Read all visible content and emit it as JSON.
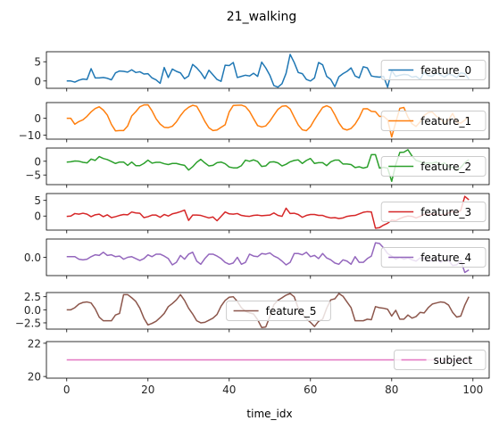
{
  "chart_data": {
    "type": "line",
    "title": "21_walking",
    "xlabel": "time_idx",
    "xlim": [
      -5,
      104
    ],
    "xticks": [
      0,
      20,
      40,
      60,
      80,
      100
    ],
    "x": [
      0,
      1,
      2,
      3,
      4,
      5,
      6,
      7,
      8,
      9,
      10,
      11,
      12,
      13,
      14,
      15,
      16,
      17,
      18,
      19,
      20,
      21,
      22,
      23,
      24,
      25,
      26,
      27,
      28,
      29,
      30,
      31,
      32,
      33,
      34,
      35,
      36,
      37,
      38,
      39,
      40,
      41,
      42,
      43,
      44,
      45,
      46,
      47,
      48,
      49,
      50,
      51,
      52,
      53,
      54,
      55,
      56,
      57,
      58,
      59,
      60,
      61,
      62,
      63,
      64,
      65,
      66,
      67,
      68,
      69,
      70,
      71,
      72,
      73,
      74,
      75,
      76,
      77,
      78,
      79,
      80,
      81,
      82,
      83,
      84,
      85,
      86,
      87,
      88,
      89,
      90,
      91,
      92,
      93,
      94,
      95,
      96,
      97,
      98,
      99
    ],
    "panels": [
      {
        "series": {
          "name": "feature_0",
          "color": "#1f77b4",
          "values": [
            0,
            0,
            -0.3,
            0.2,
            0.5,
            0.4,
            3.2,
            0.8,
            0.8,
            0.9,
            0.7,
            0.3,
            2.1,
            2.6,
            2.5,
            2.3,
            2.9,
            2.2,
            2.4,
            1.8,
            1.9,
            0.8,
            0.3,
            -0.6,
            3.5,
            0.9,
            3.1,
            2.5,
            2.1,
            0.6,
            1.3,
            4.3,
            3.4,
            2.2,
            0.6,
            2.8,
            1.6,
            0.4,
            -0.1,
            4.1,
            4.0,
            4.8,
            0.9,
            1.2,
            1.5,
            1.3,
            2.0,
            1.2,
            4.9,
            3.4,
            1.5,
            -1.2,
            -1.6,
            -0.7,
            2.0,
            6.9,
            4.8,
            2.2,
            1.9,
            0.4,
            0.0,
            0.8,
            4.8,
            4.2,
            1.2,
            0.4,
            -1.5,
            1.1,
            1.9,
            2.5,
            3.4,
            1.3,
            0.8,
            3.7,
            3.4,
            1.3,
            1.1,
            1.0,
            1.2,
            -1.6,
            2.7,
            1.2,
            1.5,
            1.7,
            1.6,
            1.0,
            1.2,
            0.4,
            2.3,
            1.4,
            1.2,
            2.1,
            1.6,
            1.0,
            1.8,
            1.5,
            0.9,
            2.1,
            1.9,
            0.5
          ]
        },
        "ylim": [
          -1.9,
          7.6
        ],
        "yticks": [
          0,
          5
        ],
        "ytick_labels": [
          "0",
          "5"
        ],
        "legend_loc": "right"
      },
      {
        "series": {
          "name": "feature_1",
          "color": "#ff7f0e",
          "values": [
            0,
            0,
            -3.5,
            -1.9,
            -0.9,
            1.2,
            3.8,
            5.8,
            6.8,
            4.9,
            1.9,
            -3.6,
            -7.4,
            -7.2,
            -7.2,
            -4.5,
            1.4,
            3.9,
            6.8,
            7.9,
            8.0,
            4.4,
            -0.3,
            -3.4,
            -5.3,
            -5.5,
            -4.7,
            -2.1,
            1.6,
            4.6,
            6.5,
            7.7,
            7.1,
            2.9,
            -1.8,
            -5.6,
            -7.2,
            -6.9,
            -5.3,
            -3.8,
            3.8,
            7.6,
            7.7,
            7.8,
            6.9,
            4.1,
            -0.2,
            -4.3,
            -5.1,
            -4.5,
            -1.7,
            1.9,
            5.3,
            7.1,
            7.4,
            5.5,
            0.7,
            -3.9,
            -6.8,
            -7.3,
            -4.9,
            -0.8,
            2.9,
            6.4,
            7.4,
            6.3,
            2.1,
            -2.7,
            -6.1,
            -6.9,
            -6.0,
            -3.4,
            0.5,
            5.6,
            5.7,
            4.1,
            3.9,
            1.1,
            1.2,
            -0.9,
            -11.0,
            -2.4,
            5.9,
            6.4,
            0.7,
            -3.2,
            -4.8,
            -2.1,
            1.7,
            3.4,
            3.7,
            1.2,
            -0.4,
            -2.7,
            -0.9,
            2.9,
            -2.2,
            -2.8,
            -1.1,
            0.8
          ]
        },
        "ylim": [
          -12.3,
          9.3
        ],
        "yticks": [
          -10,
          0
        ],
        "ytick_labels": [
          "−10",
          "0"
        ],
        "legend_loc": "right"
      },
      {
        "series": {
          "name": "feature_2",
          "color": "#2ca02c",
          "values": [
            -0.3,
            -0.2,
            0.1,
            0,
            -0.4,
            -0.6,
            0.8,
            0.3,
            1.7,
            1.0,
            0.6,
            -0.1,
            -0.8,
            -0.3,
            -0.3,
            -1.5,
            -0.3,
            -1.6,
            -1.6,
            -0.8,
            0.4,
            -0.7,
            -0.4,
            -0.4,
            -0.9,
            -1.2,
            -0.8,
            -0.8,
            -1.2,
            -1.5,
            -3.2,
            -2.0,
            -0.4,
            0.7,
            -0.6,
            -1.7,
            -1.5,
            -0.5,
            -0.3,
            -0.9,
            -2.1,
            -2.4,
            -2.4,
            -1.6,
            0.4,
            0,
            0.5,
            -0.1,
            -1.9,
            -1.7,
            -0.3,
            -0.2,
            -0.6,
            -1.7,
            -1.1,
            -0.2,
            0.3,
            0.5,
            -0.8,
            0.3,
            1.0,
            -0.8,
            -0.5,
            -0.5,
            -1.6,
            -0.2,
            0.4,
            0.4,
            -1.0,
            -1.0,
            -1.2,
            -2.3,
            -2.0,
            -2.5,
            -2.1,
            2.4,
            2.4,
            -2.5,
            -2.2,
            -2.5,
            -7.3,
            -1.2,
            3.2,
            3.3,
            4.2,
            1.9,
            0.3,
            -0.1,
            -0.8,
            -0.6,
            -0.7,
            -0.3,
            -1.3,
            -0.6,
            -2.0,
            -2.2,
            -3.4,
            -2.3,
            -0.5,
            0.6
          ]
        },
        "ylim": [
          -8.5,
          4.8
        ],
        "yticks": [
          -5,
          0
        ],
        "ytick_labels": [
          "−5",
          "0"
        ],
        "legend_loc": "right"
      },
      {
        "series": {
          "name": "feature_3",
          "color": "#d62728",
          "values": [
            -0.1,
            0,
            0.8,
            0.6,
            0.9,
            0.6,
            -0.2,
            0.4,
            0.6,
            -0.2,
            0.4,
            -0.5,
            -0.2,
            0.2,
            0.5,
            0.4,
            1.3,
            1.0,
            0.9,
            -0.5,
            -0.2,
            0.3,
            0.3,
            -0.4,
            0.5,
            0,
            0.7,
            1.0,
            1.4,
            1.9,
            -1.4,
            0.3,
            0.3,
            0.2,
            -0.2,
            -0.6,
            -0.3,
            -1.5,
            -0.1,
            1.3,
            0.7,
            0.6,
            0.8,
            0.2,
            0,
            -0.1,
            0.2,
            0.3,
            0.1,
            0.2,
            0.3,
            1.0,
            0.2,
            -0.1,
            2.5,
            0.8,
            0.9,
            0.5,
            -0.4,
            0.2,
            0.5,
            0.5,
            0.2,
            0.2,
            -0.3,
            -0.6,
            -0.5,
            -0.8,
            -0.6,
            -0.1,
            0.1,
            0.2,
            0.7,
            1.2,
            1.4,
            1.3,
            -3.9,
            -3.7,
            -2.9,
            -2.3,
            -1.3,
            -1.5,
            -0.8,
            -0.3,
            0,
            -0.1,
            -0.6,
            -0.1,
            0.6,
            0.4,
            0.7,
            0.7,
            0.3,
            0.5,
            1.0,
            1.5,
            1.0,
            1.8,
            6.3,
            5.2
          ]
        },
        "ylim": [
          -4.5,
          7.2
        ],
        "yticks": [
          0,
          5
        ],
        "ytick_labels": [
          "0",
          "5"
        ],
        "legend_loc": "right"
      },
      {
        "series": {
          "name": "feature_4",
          "color": "#9467bd",
          "values": [
            0.1,
            0.1,
            0.1,
            -0.3,
            -0.4,
            -0.3,
            0.1,
            0.4,
            0.3,
            0.8,
            0.3,
            0.4,
            0.1,
            0.2,
            -0.3,
            0,
            0.1,
            -0.2,
            -0.5,
            -0.2,
            0.4,
            0.1,
            0.5,
            0.5,
            0.2,
            -0.2,
            -1.2,
            -0.8,
            0.3,
            -0.3,
            0.5,
            0.8,
            -0.6,
            -1.1,
            -0.2,
            0.5,
            0.5,
            0.2,
            -0.2,
            -0.8,
            -1.1,
            -0.9,
            0,
            -1.1,
            -0.8,
            0.5,
            0.2,
            0.1,
            0.6,
            0.5,
            0.7,
            0.2,
            -0.1,
            -0.6,
            -1.2,
            -0.8,
            0.6,
            0.6,
            0.4,
            0.8,
            0.1,
            0.3,
            -0.2,
            0.6,
            -0.1,
            -0.4,
            -0.9,
            -1.1,
            -0.4,
            -0.6,
            -1.1,
            0.1,
            -0.8,
            -0.8,
            -0.2,
            0.2,
            2.3,
            2.2,
            1.5,
            0.6,
            0.2,
            -0.3,
            0,
            -0.3,
            -0.1,
            -0.4,
            -0.6,
            -0.1,
            -0.2,
            -0.5,
            -0.6,
            -0.2,
            -0.8,
            -0.4,
            -0.5,
            -1.3,
            -1.2,
            -0.5,
            -2.4,
            -2.0
          ]
        },
        "ylim": [
          -2.9,
          2.9
        ],
        "yticks": [
          0.0
        ],
        "ytick_labels": [
          "0.0"
        ],
        "legend_loc": "right"
      },
      {
        "series": {
          "name": "feature_5",
          "color": "#8c564b",
          "values": [
            0,
            0,
            0.4,
            1.1,
            1.4,
            1.5,
            1.3,
            0.2,
            -1.4,
            -2.1,
            -2.1,
            -2.1,
            -1.0,
            -0.7,
            2.9,
            2.9,
            2.3,
            1.6,
            0.3,
            -1.6,
            -2.9,
            -2.6,
            -2.2,
            -1.5,
            -0.7,
            0.6,
            1.2,
            1.9,
            2.9,
            1.8,
            0.3,
            -0.8,
            -2.1,
            -2.5,
            -2.4,
            -2.0,
            -1.6,
            -0.9,
            0.7,
            1.8,
            2.4,
            2.5,
            1.6,
            0.4,
            -0.3,
            -0.6,
            -0.8,
            -1.9,
            -3.4,
            -3.3,
            -1.3,
            1.0,
            1.8,
            2.3,
            2.8,
            3.1,
            2.5,
            0.3,
            -0.8,
            -1.7,
            -2.4,
            -3.2,
            -2.2,
            -1.8,
            0.3,
            1.9,
            2.1,
            3.1,
            2.6,
            1.5,
            0.4,
            -2.1,
            -2.1,
            -2.1,
            -1.8,
            -1.9,
            0.6,
            0.4,
            0.3,
            0.1,
            -1.2,
            -0.1,
            -1.8,
            -1.8,
            -1.0,
            -1.6,
            -1.3,
            -0.5,
            -0.6,
            0.4,
            1.1,
            1.3,
            1.5,
            1.4,
            0.9,
            -0.5,
            -1.4,
            -1.2,
            0.9,
            2.5
          ]
        },
        "ylim": [
          -3.7,
          3.3
        ],
        "yticks": [
          -2.5,
          0.0,
          2.5
        ],
        "ytick_labels": [
          "−2.5",
          "0.0",
          "2.5"
        ],
        "legend_loc": "center"
      },
      {
        "series": {
          "name": "subject",
          "color": "#e377c2",
          "values": [
            21,
            21,
            21,
            21,
            21,
            21,
            21,
            21,
            21,
            21,
            21,
            21,
            21,
            21,
            21,
            21,
            21,
            21,
            21,
            21,
            21,
            21,
            21,
            21,
            21,
            21,
            21,
            21,
            21,
            21,
            21,
            21,
            21,
            21,
            21,
            21,
            21,
            21,
            21,
            21,
            21,
            21,
            21,
            21,
            21,
            21,
            21,
            21,
            21,
            21,
            21,
            21,
            21,
            21,
            21,
            21,
            21,
            21,
            21,
            21,
            21,
            21,
            21,
            21,
            21,
            21,
            21,
            21,
            21,
            21,
            21,
            21,
            21,
            21,
            21,
            21,
            21,
            21,
            21,
            21,
            21,
            21,
            21,
            21,
            21,
            21,
            21,
            21,
            21,
            21,
            21,
            21,
            21,
            21,
            21,
            21,
            21,
            21,
            21,
            21
          ]
        },
        "ylim": [
          19.9,
          22.1
        ],
        "yticks": [
          20,
          22
        ],
        "ytick_labels": [
          "20",
          "22"
        ],
        "legend_loc": "right"
      }
    ]
  }
}
